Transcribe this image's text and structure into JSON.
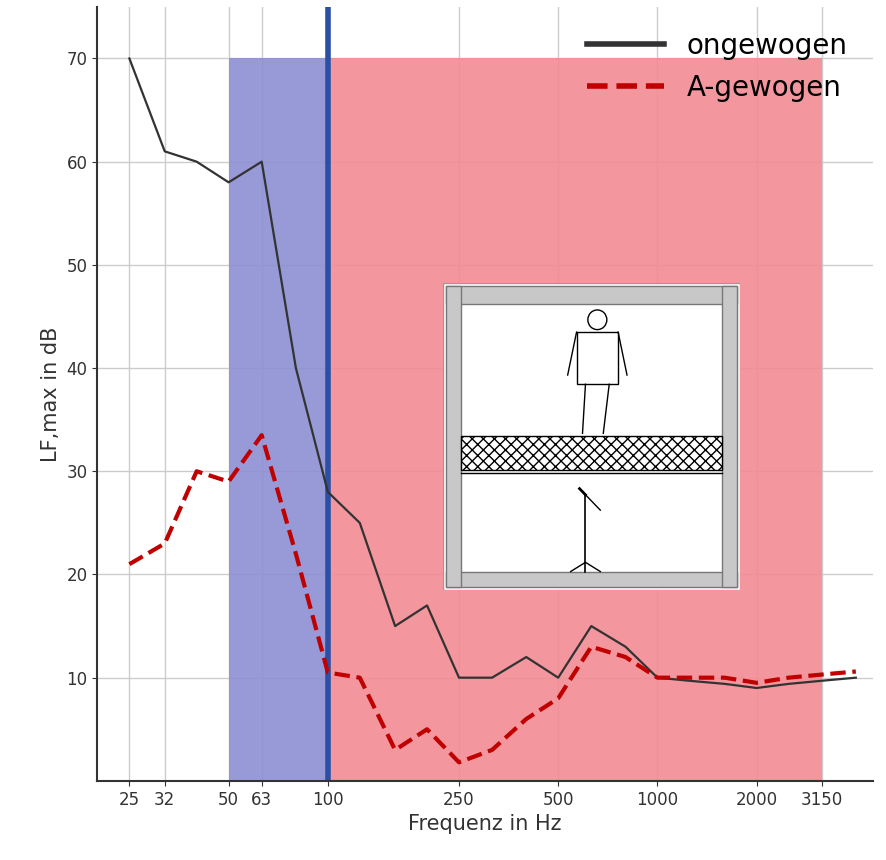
{
  "chart_data": {
    "type": "line",
    "xlabel": "Frequenz in Hz",
    "ylabel": "LF,max in dB",
    "x": [
      25,
      32,
      40,
      50,
      63,
      80,
      100,
      125,
      160,
      200,
      250,
      315,
      400,
      500,
      630,
      800,
      1000,
      1250,
      1600,
      2000,
      2500,
      3150,
      4000
    ],
    "series": [
      {
        "name": "ongewogen",
        "color": "#333333",
        "line_style": "solid",
        "values": [
          70,
          61,
          60,
          58,
          60,
          40,
          28,
          25,
          15,
          17,
          10,
          10,
          12,
          10,
          15,
          13,
          10,
          9.7,
          9.4,
          9,
          9.4,
          9.7,
          10
        ]
      },
      {
        "name": "A-gewogen",
        "color": "#c00000",
        "line_style": "dashed",
        "values": [
          21,
          23,
          30,
          29,
          33.5,
          22,
          10.5,
          10,
          3,
          5,
          1.8,
          3,
          6,
          8,
          13,
          12,
          10,
          10,
          10,
          9.5,
          10,
          10.3,
          10.6
        ]
      }
    ],
    "regions": [
      {
        "x0": 50,
        "x1": 100,
        "y1": 70,
        "color": "#8c8fd2"
      },
      {
        "x0": 100,
        "x1": 3150,
        "y1": 70,
        "color": "#f28b93"
      }
    ],
    "vline": {
      "x": 100,
      "color": "#2b4fa3"
    },
    "log": "x",
    "xlim": [
      20,
      4500
    ],
    "xticks": [
      25,
      32,
      50,
      63,
      100,
      250,
      500,
      1000,
      2000,
      3150
    ],
    "ylim": [
      0,
      75
    ],
    "yticks": [
      10,
      20,
      30,
      40,
      50,
      60,
      70
    ],
    "grid": true,
    "legend": "upper right"
  }
}
